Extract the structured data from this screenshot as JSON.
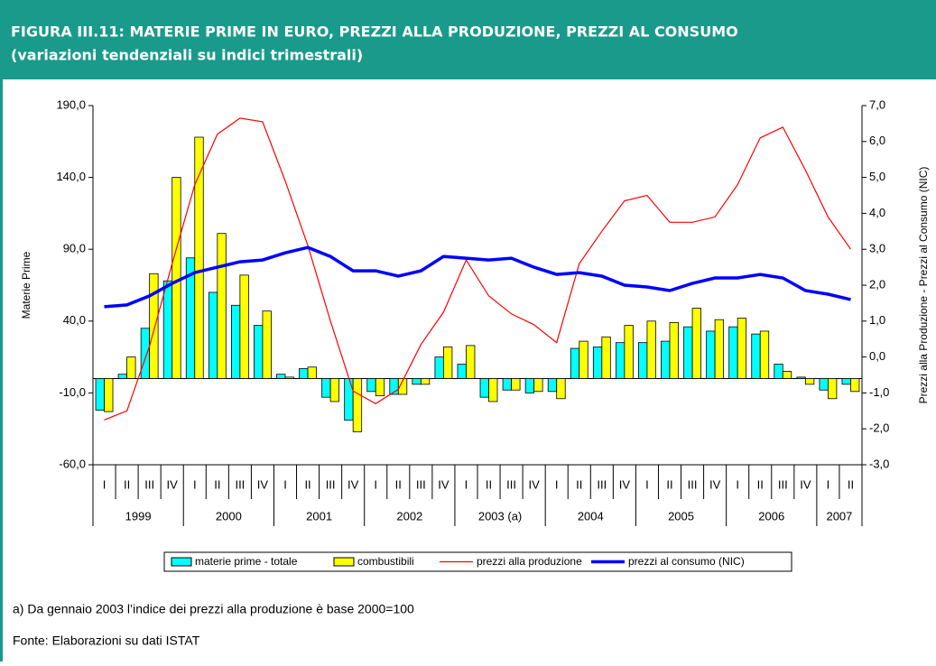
{
  "header": {
    "title": "FIGURA III.11: MATERIE PRIME IN EURO, PREZZI ALLA PRODUZIONE, PREZZI AL CONSUMO",
    "subtitle": "(variazioni tendenziali su indici trimestrali)"
  },
  "chart_data": {
    "type": "bar",
    "y_label": "Materie Prime",
    "y2_label": "Prezzi alla Produzione - Prezzi al Consumo (NIC)",
    "categories": [
      "I",
      "II",
      "III",
      "IV",
      "I",
      "II",
      "III",
      "IV",
      "I",
      "II",
      "III",
      "IV",
      "I",
      "II",
      "III",
      "IV",
      "I",
      "II",
      "III",
      "IV",
      "I",
      "II",
      "III",
      "IV",
      "I",
      "II",
      "III",
      "IV",
      "I",
      "II",
      "III",
      "IV",
      "I",
      "II"
    ],
    "x_groups": [
      "1999",
      "2000",
      "2001",
      "2002",
      "2003 (a)",
      "2004",
      "2005",
      "2006",
      "2007"
    ],
    "ylim": [
      -60,
      190
    ],
    "yticks": [
      {
        "value": -60,
        "label": "-60,0"
      },
      {
        "value": -10,
        "label": "-10,0"
      },
      {
        "value": 40,
        "label": "40,0"
      },
      {
        "value": 90,
        "label": "90,0"
      },
      {
        "value": 140,
        "label": "140,0"
      },
      {
        "value": 190,
        "label": "190,0"
      }
    ],
    "y2lim": [
      -3,
      7
    ],
    "y2ticks": [
      {
        "value": -3,
        "label": "-3,0"
      },
      {
        "value": -2,
        "label": "-2,0"
      },
      {
        "value": -1,
        "label": "-1,0"
      },
      {
        "value": 0,
        "label": "0,0"
      },
      {
        "value": 1,
        "label": "1,0"
      },
      {
        "value": 2,
        "label": "2,0"
      },
      {
        "value": 3,
        "label": "3,0"
      },
      {
        "value": 4,
        "label": "4,0"
      },
      {
        "value": 5,
        "label": "5,0"
      },
      {
        "value": 6,
        "label": "6,0"
      },
      {
        "value": 7,
        "label": "7,0"
      }
    ],
    "series": [
      {
        "name": "materie prime - totale",
        "type": "bar",
        "color": "#00ffff",
        "values": [
          -22,
          3,
          35,
          68,
          84,
          60,
          51,
          37,
          3,
          7,
          -13,
          -29,
          -9,
          -11,
          -4,
          15,
          10,
          -13,
          -8,
          -10,
          -9,
          21,
          22,
          25,
          25,
          26,
          36,
          33,
          36,
          31,
          10,
          1,
          -8,
          -4
        ]
      },
      {
        "name": "combustibili",
        "type": "bar",
        "color": "#ffff00",
        "values": [
          -23,
          15,
          73,
          140,
          168,
          101,
          72,
          47,
          1,
          8,
          -16,
          -37,
          -12,
          -11,
          -4,
          22,
          23,
          -16,
          -8,
          -9,
          -14,
          26,
          29,
          37,
          40,
          39,
          49,
          41,
          42,
          33,
          5,
          -4,
          -14,
          -9
        ]
      },
      {
        "name": "prezzi alla produzione",
        "type": "line",
        "axis": "y2",
        "color": "#ff0000",
        "values": [
          -1.75,
          -1.5,
          0.3,
          2.6,
          4.8,
          6.2,
          6.65,
          6.55,
          4.9,
          3.1,
          1.0,
          -0.95,
          -1.3,
          -0.9,
          0.35,
          1.25,
          2.7,
          1.7,
          1.2,
          0.9,
          0.4,
          2.6,
          3.5,
          4.35,
          4.5,
          3.75,
          3.75,
          3.9,
          4.8,
          6.1,
          6.4,
          5.2,
          3.9,
          3.0
        ]
      },
      {
        "name": "prezzi al consumo (NIC)",
        "type": "line",
        "axis": "y2",
        "color": "#0000ff",
        "values": [
          1.4,
          1.45,
          1.7,
          2.05,
          2.35,
          2.5,
          2.65,
          2.7,
          2.9,
          3.05,
          2.8,
          2.4,
          2.4,
          2.25,
          2.4,
          2.8,
          2.75,
          2.7,
          2.75,
          2.5,
          2.3,
          2.35,
          2.25,
          2.0,
          1.95,
          1.85,
          2.05,
          2.2,
          2.2,
          2.3,
          2.2,
          1.85,
          1.75,
          1.6
        ]
      }
    ]
  },
  "footnotes": [
    "a) Da gennaio 2003 l’indice dei prezzi alla produzione è base 2000=100",
    "Fonte: Elaborazioni su dati ISTAT"
  ]
}
